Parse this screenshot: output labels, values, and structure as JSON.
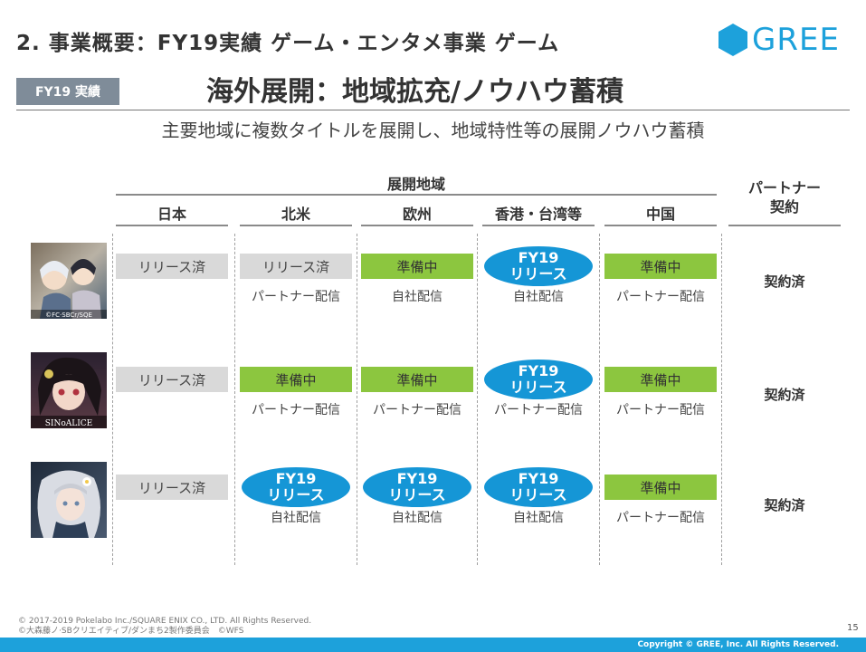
{
  "header": {
    "slide_title": "2. 事業概要：FY19実績 ゲーム・エンタメ事業 ゲーム",
    "logo_text": "GREE",
    "badge": "FY19 実績",
    "subtitle": "海外展開：地域拡充/ノウハウ蓄積",
    "lead": "主要地域に複数タイトルを展開し、地域特性等の展開ノウハウ蓄積"
  },
  "table": {
    "region_group_label": "展開地域",
    "partner_label_line1": "パートナー",
    "partner_label_line2": "契約",
    "columns": [
      "日本",
      "北米",
      "欧州",
      "香港・台湾等",
      "中国"
    ],
    "rows": [
      {
        "icon": "game-icon-danmachi",
        "icon_caption": "©FC·SBCr/SQE",
        "cells": [
          {
            "type": "released",
            "status": "リリース済",
            "dist": ""
          },
          {
            "type": "released",
            "status": "リリース済",
            "dist": "パートナー配信"
          },
          {
            "type": "preparing",
            "status": "準備中",
            "dist": "自社配信"
          },
          {
            "type": "pill",
            "status_line1": "FY19",
            "status_line2": "リリース",
            "dist": "自社配信"
          },
          {
            "type": "preparing",
            "status": "準備中",
            "dist": "パートナー配信"
          }
        ],
        "contract": "契約済"
      },
      {
        "icon": "game-icon-sinoalice",
        "icon_caption": "SINoALICE",
        "cells": [
          {
            "type": "released",
            "status": "リリース済",
            "dist": ""
          },
          {
            "type": "preparing",
            "status": "準備中",
            "dist": "パートナー配信"
          },
          {
            "type": "preparing",
            "status": "準備中",
            "dist": "パートナー配信"
          },
          {
            "type": "pill",
            "status_line1": "FY19",
            "status_line2": "リリース",
            "dist": "パートナー配信"
          },
          {
            "type": "preparing",
            "status": "準備中",
            "dist": "パートナー配信"
          }
        ],
        "contract": "契約済"
      },
      {
        "icon": "game-icon-wfs",
        "icon_caption": "",
        "cells": [
          {
            "type": "released",
            "status": "リリース済",
            "dist": ""
          },
          {
            "type": "pill",
            "status_line1": "FY19",
            "status_line2": "リリース",
            "dist": "自社配信"
          },
          {
            "type": "pill",
            "status_line1": "FY19",
            "status_line2": "リリース",
            "dist": "自社配信"
          },
          {
            "type": "pill",
            "status_line1": "FY19",
            "status_line2": "リリース",
            "dist": "自社配信"
          },
          {
            "type": "preparing",
            "status": "準備中",
            "dist": "パートナー配信"
          }
        ],
        "contract": "契約済"
      }
    ]
  },
  "footer": {
    "credit_line1": "© 2017-2019 Pokelabo Inc./SQUARE ENIX CO., LTD. All Rights Reserved.",
    "credit_line2": "©大森藤ノ·SBクリエイティブ/ダンまち2製作委員会　©WFS",
    "page_number": "15",
    "copyright": "Copyright © GREE, Inc. All Rights Reserved."
  },
  "colors": {
    "brand": "#1da1db",
    "released": "#d9d9d9",
    "preparing": "#8cc63f",
    "pill": "#1596d6",
    "badge": "#7f8c99"
  }
}
